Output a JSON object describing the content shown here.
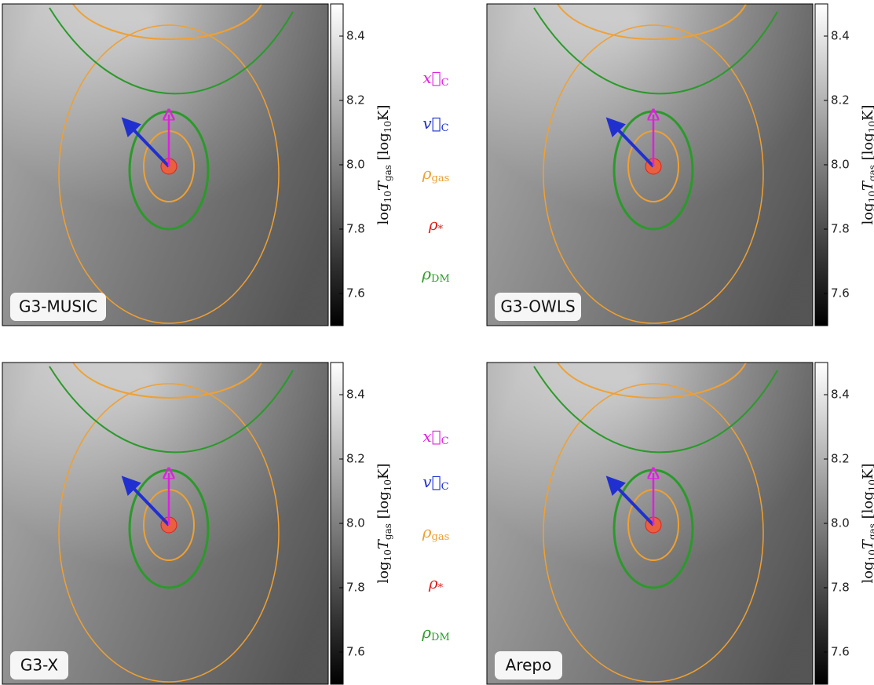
{
  "chart_data": {
    "type": "heatmap",
    "panels": [
      {
        "label": "G3-MUSIC"
      },
      {
        "label": "G3-OWLS"
      },
      {
        "label": "G3-X"
      },
      {
        "label": "Arepo"
      }
    ],
    "colorbar": {
      "label": {
        "main": "log",
        "sub1": "10",
        "var": "T",
        "sub2": "gas",
        "unit": " [log",
        "sub3": "10",
        "unit2": "K]"
      },
      "lim": [
        7.5,
        8.5
      ],
      "ticks": [
        7.6,
        7.8,
        {
          "value": 8,
          "label": "8.0"
        },
        8.2,
        8.4
      ]
    },
    "legend": [
      {
        "symbol": "x⃗",
        "sub": "C",
        "color": "#e020e0"
      },
      {
        "symbol": "v⃗",
        "sub": "C",
        "color": "#2030d0"
      },
      {
        "symbol": "ρ",
        "sub": "gas",
        "color": "#f0a030"
      },
      {
        "symbol": "ρ",
        "sub": "*",
        "color": "#e02020"
      },
      {
        "symbol": "ρ",
        "sub": "DM",
        "color": "#2a9a2a"
      }
    ]
  }
}
